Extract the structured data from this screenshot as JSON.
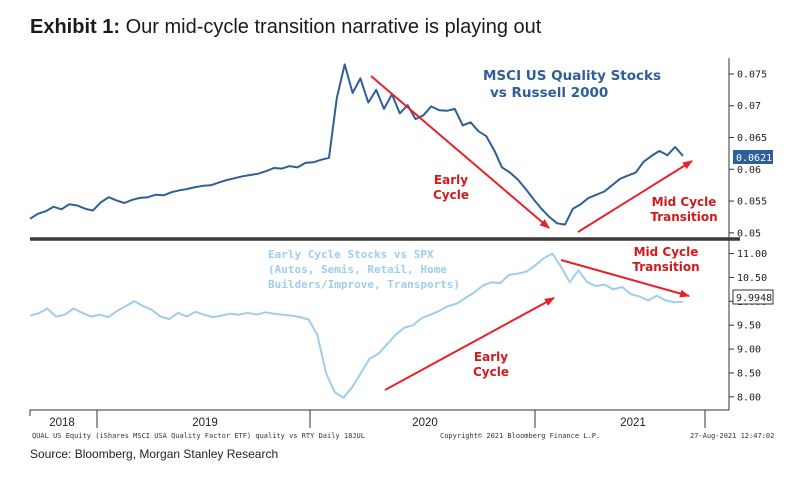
{
  "title": {
    "exhibit": "Exhibit 1:",
    "text": "Our mid-cycle transition narrative is playing out"
  },
  "source": "Source: Bloomberg, Morgan Stanley Research",
  "footer": {
    "left": "QUAL US Equity (iShares MSCI USA Quality Factor ETF) quality vs RTY  Daily 18JUL",
    "center": "Copyright© 2021 Bloomberg Finance L.P.",
    "right": "27-Aug-2021 12:47:02"
  },
  "colors": {
    "top_series": "#2e5f99",
    "bottom_series": "#9fcdec",
    "arrows": "#e8202a",
    "annotation_red": "#d11a1a",
    "label_box": "#2e5f99"
  },
  "chart_data": [
    {
      "type": "line",
      "title": "MSCI US Quality Stocks vs Russell 2000",
      "title_lines": [
        "MSCI US Quality Stocks",
        "vs Russell 2000"
      ],
      "x_ticks": [
        "2018",
        "2019",
        "2020",
        "2021"
      ],
      "ylim": [
        0.0495,
        0.0772
      ],
      "y_ticks": [
        "0.075",
        "0.07",
        "0.065",
        "0.06",
        "0.055",
        "0.05"
      ],
      "last_value_label": "0.0621",
      "series": [
        {
          "values": [
            0.0522,
            0.053,
            0.0534,
            0.0541,
            0.0537,
            0.0545,
            0.0543,
            0.0538,
            0.0535,
            0.0548,
            0.0556,
            0.0551,
            0.0547,
            0.0552,
            0.0555,
            0.0556,
            0.056,
            0.0559,
            0.0564,
            0.0567,
            0.0569,
            0.0572,
            0.0574,
            0.0575,
            0.0579,
            0.0583,
            0.0586,
            0.0589,
            0.0591,
            0.0593,
            0.0597,
            0.0602,
            0.0601,
            0.0605,
            0.0603,
            0.061,
            0.0611,
            0.0615,
            0.0618,
            0.0712,
            0.0765,
            0.072,
            0.0743,
            0.0705,
            0.0725,
            0.0695,
            0.0718,
            0.0688,
            0.0701,
            0.0679,
            0.0685,
            0.0699,
            0.0693,
            0.0692,
            0.0695,
            0.0669,
            0.0674,
            0.066,
            0.0652,
            0.063,
            0.0603,
            0.0595,
            0.0584,
            0.0569,
            0.0553,
            0.0538,
            0.0525,
            0.0515,
            0.0513,
            0.0538,
            0.0545,
            0.0555,
            0.056,
            0.0565,
            0.0575,
            0.0585,
            0.059,
            0.0595,
            0.0612,
            0.0621,
            0.0629,
            0.0622,
            0.0635,
            0.0621
          ]
        }
      ],
      "annotations": [
        {
          "text": [
            "Early",
            "Cycle"
          ]
        },
        {
          "text": [
            "Mid Cycle",
            "Transition"
          ]
        }
      ]
    },
    {
      "type": "line",
      "title": "Early Cycle Stocks vs SPX",
      "title_lines": [
        "Early Cycle Stocks vs SPX",
        "(Autos, Semis, Retail, Home",
        "Builders/Improve, Transports)"
      ],
      "x_ticks": [
        "2018",
        "2019",
        "2020",
        "2021"
      ],
      "ylim": [
        7.85,
        11.2
      ],
      "y_ticks": [
        "11.00",
        "10.50",
        "10.00",
        "9.50",
        "9.00",
        "8.50",
        "8.00"
      ],
      "last_value_label": "9.9948",
      "series": [
        {
          "values": [
            9.7,
            9.75,
            9.85,
            9.68,
            9.72,
            9.85,
            9.76,
            9.68,
            9.72,
            9.67,
            9.8,
            9.9,
            10.0,
            9.9,
            9.82,
            9.68,
            9.63,
            9.76,
            9.68,
            9.78,
            9.72,
            9.67,
            9.7,
            9.74,
            9.72,
            9.76,
            9.72,
            9.77,
            9.74,
            9.72,
            9.7,
            9.67,
            9.62,
            9.3,
            8.5,
            8.1,
            7.98,
            8.2,
            8.5,
            8.8,
            8.9,
            9.1,
            9.3,
            9.45,
            9.5,
            9.65,
            9.72,
            9.8,
            9.9,
            9.95,
            10.07,
            10.18,
            10.33,
            10.4,
            10.38,
            10.55,
            10.58,
            10.62,
            10.75,
            10.9,
            11.0,
            10.72,
            10.4,
            10.65,
            10.4,
            10.32,
            10.35,
            10.25,
            10.3,
            10.15,
            10.1,
            10.02,
            10.12,
            10.02,
            9.98,
            9.995
          ]
        }
      ],
      "annotations": [
        {
          "text": [
            "Early",
            "Cycle"
          ]
        },
        {
          "text": [
            "Mid Cycle",
            "Transition"
          ]
        }
      ]
    }
  ]
}
